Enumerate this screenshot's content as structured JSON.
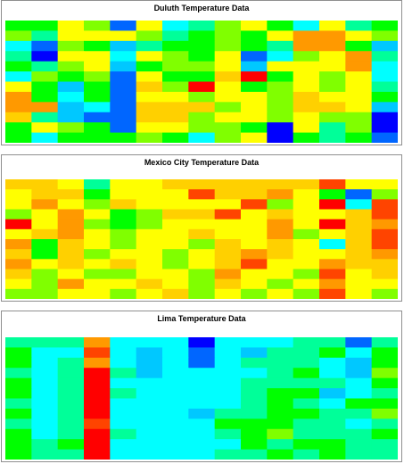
{
  "panels": [
    {
      "title": "Duluth Temperature Data"
    },
    {
      "title": "Mexico City Temperature Data"
    },
    {
      "title": "Lima Temperature Data"
    }
  ],
  "palette": {
    "0": "#0000ff",
    "1": "#0066ff",
    "2": "#00c8ff",
    "3": "#00ffff",
    "4": "#00ff99",
    "5": "#00ff00",
    "6": "#80ff00",
    "7": "#ffff00",
    "8": "#ffd000",
    "9": "#ff9900",
    "10": "#ff4400",
    "11": "#ff0000"
  },
  "chart_data": [
    {
      "type": "heatmap",
      "title": "Duluth Temperature Data",
      "rows": 12,
      "cols": 15,
      "values": [
        [
          5,
          5,
          7,
          6,
          1,
          7,
          3,
          4,
          6,
          7,
          5,
          3,
          7,
          4,
          5
        ],
        [
          6,
          4,
          7,
          7,
          7,
          6,
          4,
          5,
          6,
          5,
          7,
          9,
          9,
          7,
          6
        ],
        [
          3,
          1,
          6,
          5,
          2,
          4,
          5,
          5,
          6,
          5,
          4,
          9,
          9,
          5,
          2
        ],
        [
          4,
          0,
          7,
          7,
          3,
          7,
          6,
          5,
          7,
          1,
          3,
          6,
          7,
          9,
          4
        ],
        [
          5,
          4,
          6,
          7,
          2,
          5,
          6,
          6,
          7,
          2,
          7,
          7,
          7,
          9,
          3
        ],
        [
          3,
          6,
          5,
          6,
          1,
          7,
          5,
          5,
          8,
          11,
          5,
          7,
          6,
          7,
          3
        ],
        [
          7,
          5,
          2,
          5,
          1,
          8,
          6,
          11,
          7,
          5,
          6,
          7,
          6,
          7,
          4
        ],
        [
          9,
          5,
          3,
          5,
          1,
          7,
          7,
          6,
          7,
          7,
          6,
          8,
          7,
          7,
          5
        ],
        [
          9,
          9,
          2,
          3,
          1,
          8,
          8,
          8,
          6,
          7,
          6,
          8,
          8,
          7,
          2
        ],
        [
          8,
          4,
          2,
          1,
          1,
          8,
          8,
          6,
          7,
          7,
          6,
          7,
          6,
          6,
          0
        ],
        [
          5,
          7,
          6,
          5,
          1,
          7,
          7,
          6,
          6,
          5,
          0,
          7,
          4,
          6,
          0
        ],
        [
          5,
          3,
          5,
          5,
          5,
          6,
          5,
          3,
          6,
          7,
          0,
          5,
          4,
          5,
          1
        ]
      ]
    },
    {
      "type": "heatmap",
      "title": "Mexico City Temperature Data",
      "rows": 12,
      "cols": 15,
      "values": [
        [
          8,
          8,
          7,
          4,
          7,
          7,
          8,
          8,
          8,
          8,
          8,
          8,
          10,
          7,
          7
        ],
        [
          7,
          8,
          8,
          5,
          7,
          7,
          7,
          10,
          8,
          8,
          9,
          7,
          5,
          1,
          6
        ],
        [
          7,
          9,
          7,
          6,
          8,
          7,
          7,
          7,
          7,
          10,
          6,
          7,
          11,
          3,
          10
        ],
        [
          6,
          7,
          9,
          7,
          5,
          6,
          8,
          8,
          10,
          7,
          8,
          7,
          7,
          8,
          10
        ],
        [
          11,
          7,
          9,
          6,
          5,
          6,
          7,
          7,
          7,
          7,
          9,
          7,
          11,
          8,
          9
        ],
        [
          7,
          8,
          9,
          7,
          6,
          7,
          7,
          8,
          7,
          7,
          9,
          6,
          7,
          8,
          10
        ],
        [
          9,
          5,
          8,
          7,
          6,
          7,
          7,
          6,
          8,
          7,
          8,
          7,
          3,
          8,
          10
        ],
        [
          8,
          5,
          8,
          6,
          7,
          7,
          6,
          7,
          8,
          9,
          8,
          7,
          7,
          8,
          9
        ],
        [
          9,
          7,
          8,
          7,
          8,
          7,
          6,
          7,
          8,
          10,
          7,
          7,
          9,
          8,
          8
        ],
        [
          8,
          6,
          7,
          6,
          6,
          7,
          7,
          6,
          9,
          7,
          7,
          6,
          10,
          7,
          8
        ],
        [
          7,
          6,
          9,
          7,
          7,
          8,
          7,
          6,
          8,
          7,
          6,
          7,
          9,
          7,
          7
        ],
        [
          6,
          6,
          7,
          7,
          6,
          7,
          8,
          6,
          7,
          6,
          7,
          6,
          10,
          7,
          6
        ]
      ]
    },
    {
      "type": "heatmap",
      "title": "Lima Temperature Data",
      "rows": 12,
      "cols": 15,
      "values": [
        [
          4,
          4,
          4,
          9,
          3,
          3,
          3,
          0,
          3,
          3,
          3,
          4,
          4,
          1,
          4
        ],
        [
          5,
          3,
          3,
          10,
          3,
          2,
          3,
          1,
          3,
          2,
          4,
          4,
          5,
          3,
          5
        ],
        [
          5,
          3,
          4,
          9,
          3,
          2,
          3,
          1,
          3,
          4,
          4,
          4,
          3,
          2,
          5
        ],
        [
          4,
          3,
          4,
          11,
          4,
          2,
          3,
          3,
          3,
          3,
          4,
          5,
          3,
          2,
          6
        ],
        [
          5,
          3,
          4,
          11,
          3,
          3,
          3,
          3,
          3,
          4,
          4,
          4,
          4,
          3,
          5
        ],
        [
          5,
          3,
          4,
          11,
          4,
          3,
          3,
          3,
          3,
          4,
          5,
          5,
          2,
          3,
          4
        ],
        [
          4,
          3,
          4,
          11,
          3,
          3,
          3,
          3,
          3,
          4,
          5,
          4,
          3,
          5,
          5
        ],
        [
          5,
          3,
          4,
          11,
          3,
          3,
          3,
          2,
          4,
          4,
          5,
          5,
          4,
          4,
          6
        ],
        [
          4,
          3,
          4,
          10,
          3,
          3,
          3,
          3,
          5,
          5,
          5,
          4,
          4,
          3,
          4
        ],
        [
          5,
          3,
          4,
          11,
          4,
          3,
          3,
          3,
          4,
          5,
          6,
          4,
          4,
          4,
          5
        ],
        [
          5,
          4,
          5,
          11,
          3,
          3,
          3,
          3,
          3,
          5,
          4,
          5,
          5,
          4,
          4
        ],
        [
          5,
          4,
          4,
          11,
          3,
          3,
          3,
          3,
          4,
          4,
          5,
          4,
          5,
          4,
          4
        ]
      ]
    }
  ]
}
